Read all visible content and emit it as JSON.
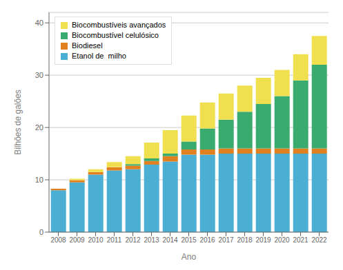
{
  "chart_data": {
    "type": "bar",
    "stacked": true,
    "categories": [
      2008,
      2009,
      2010,
      2011,
      2012,
      2013,
      2014,
      2015,
      2016,
      2017,
      2018,
      2019,
      2020,
      2021,
      2022
    ],
    "series": [
      {
        "name": "Etanol de  milho",
        "color": "#4bafd4",
        "values": [
          8.0,
          9.5,
          11.0,
          11.8,
          12.0,
          12.9,
          13.5,
          14.8,
          14.8,
          15.0,
          15.0,
          15.0,
          15.0,
          15.0,
          15.0
        ]
      },
      {
        "name": "Biodiesel",
        "color": "#e08020",
        "values": [
          0.3,
          0.4,
          0.5,
          0.6,
          0.7,
          0.7,
          1.0,
          1.0,
          1.0,
          1.0,
          1.0,
          1.0,
          1.0,
          1.0,
          1.0
        ]
      },
      {
        "name": "Biocombustível celulósico",
        "color": "#3aab6e",
        "values": [
          0.0,
          0.0,
          0.0,
          0.0,
          0.3,
          0.5,
          0.5,
          1.5,
          4.0,
          5.5,
          7.0,
          8.5,
          10.0,
          13.0,
          16.0
        ]
      },
      {
        "name": "Biocombustíveis avançados",
        "color": "#f0e050",
        "values": [
          0.0,
          0.3,
          0.5,
          1.0,
          1.5,
          3.0,
          4.5,
          5.0,
          5.0,
          5.0,
          5.0,
          5.0,
          5.0,
          5.0,
          5.5
        ]
      }
    ],
    "xlabel": "Ano",
    "ylabel": "Bilhões de galões",
    "ylim": [
      0,
      42
    ],
    "yticks": [
      0,
      10,
      20,
      30,
      40
    ],
    "grid": true,
    "legend": "upper left"
  }
}
